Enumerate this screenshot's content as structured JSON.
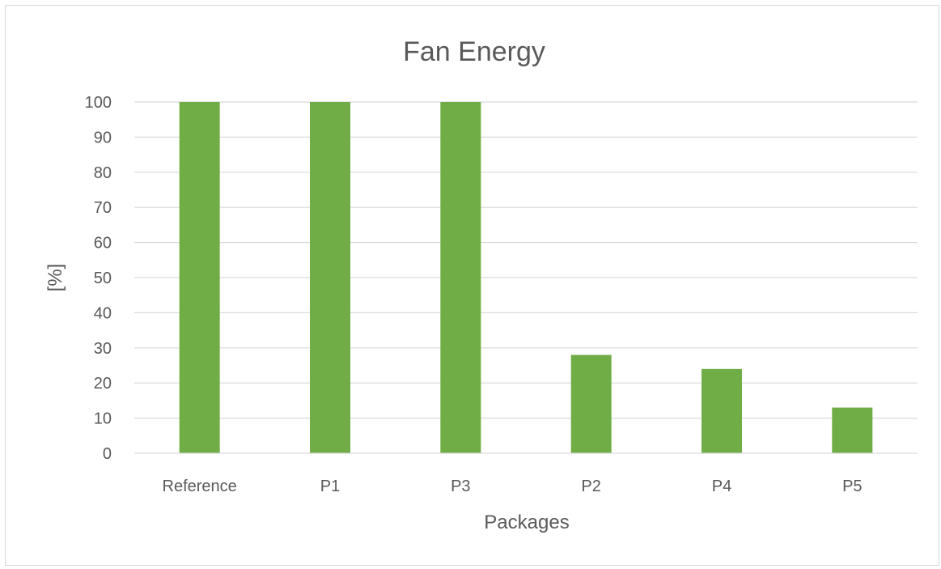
{
  "chart_data": {
    "type": "bar",
    "title": "Fan Energy",
    "xlabel": "Packages",
    "ylabel": "[%]",
    "categories": [
      "Reference",
      "P1",
      "P3",
      "P2",
      "P4",
      "P5"
    ],
    "values": [
      100,
      100,
      100,
      28,
      24,
      13
    ],
    "ylim": [
      0,
      100
    ],
    "yticks": [
      0,
      10,
      20,
      30,
      40,
      50,
      60,
      70,
      80,
      90,
      100
    ],
    "grid": true,
    "legend": "none",
    "bar_color": "#70ad47",
    "grid_color": "#d9d9d9"
  }
}
